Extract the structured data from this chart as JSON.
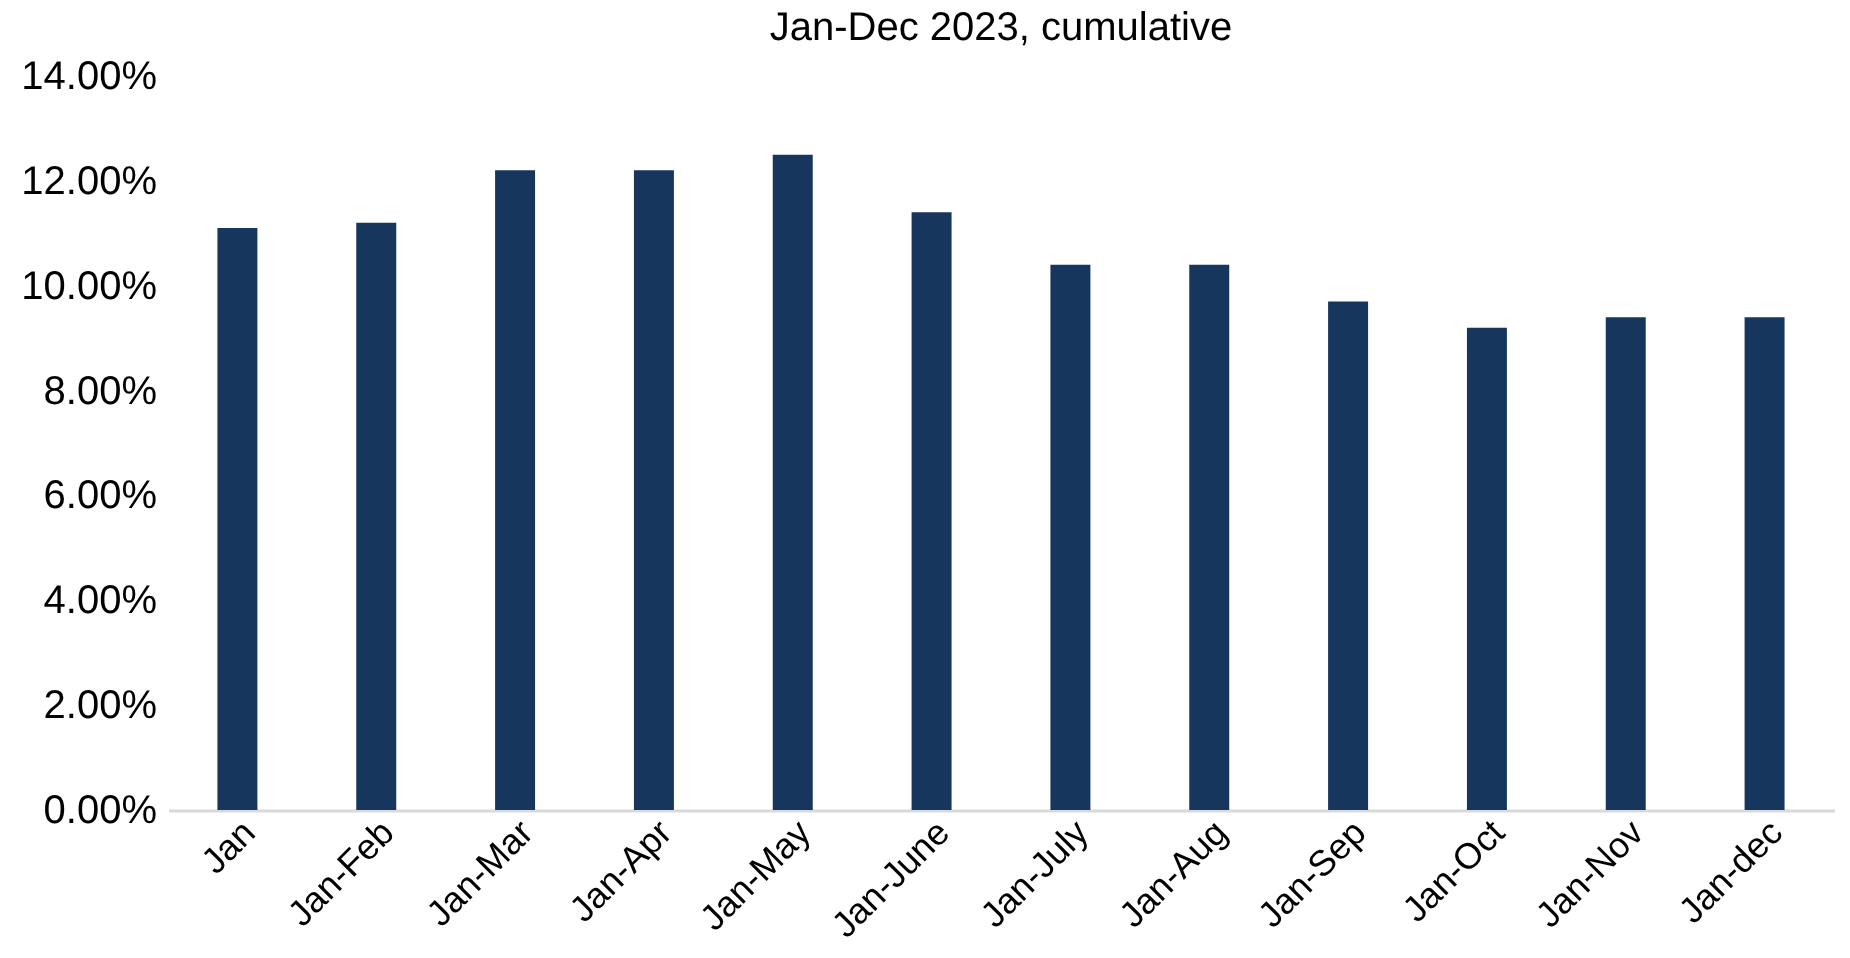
{
  "chart_data": {
    "type": "bar",
    "title": "Jan-Dec 2023, cumulative",
    "categories": [
      "Jan",
      "Jan-Feb",
      "Jan-Mar",
      "Jan-Apr",
      "Jan-May",
      "Jan-June",
      "Jan-July",
      "Jan-Aug",
      "Jan-Sep",
      "Jan-Oct",
      "Jan-Nov",
      "Jan-dec"
    ],
    "values": [
      11.1,
      11.2,
      12.2,
      12.2,
      12.5,
      11.4,
      10.4,
      10.4,
      9.7,
      9.2,
      9.4,
      9.4
    ],
    "color": "#17365d",
    "ylim": [
      0,
      14
    ],
    "yticks": [
      {
        "value": 0,
        "label": "0.00%"
      },
      {
        "value": 2,
        "label": "2.00%"
      },
      {
        "value": 4,
        "label": "4.00%"
      },
      {
        "value": 6,
        "label": "6.00%"
      },
      {
        "value": 8,
        "label": "8.00%"
      },
      {
        "value": 10,
        "label": "10.00%"
      },
      {
        "value": 12,
        "label": "12.00%"
      },
      {
        "value": 14,
        "label": "14.00%"
      }
    ],
    "grid": false
  }
}
